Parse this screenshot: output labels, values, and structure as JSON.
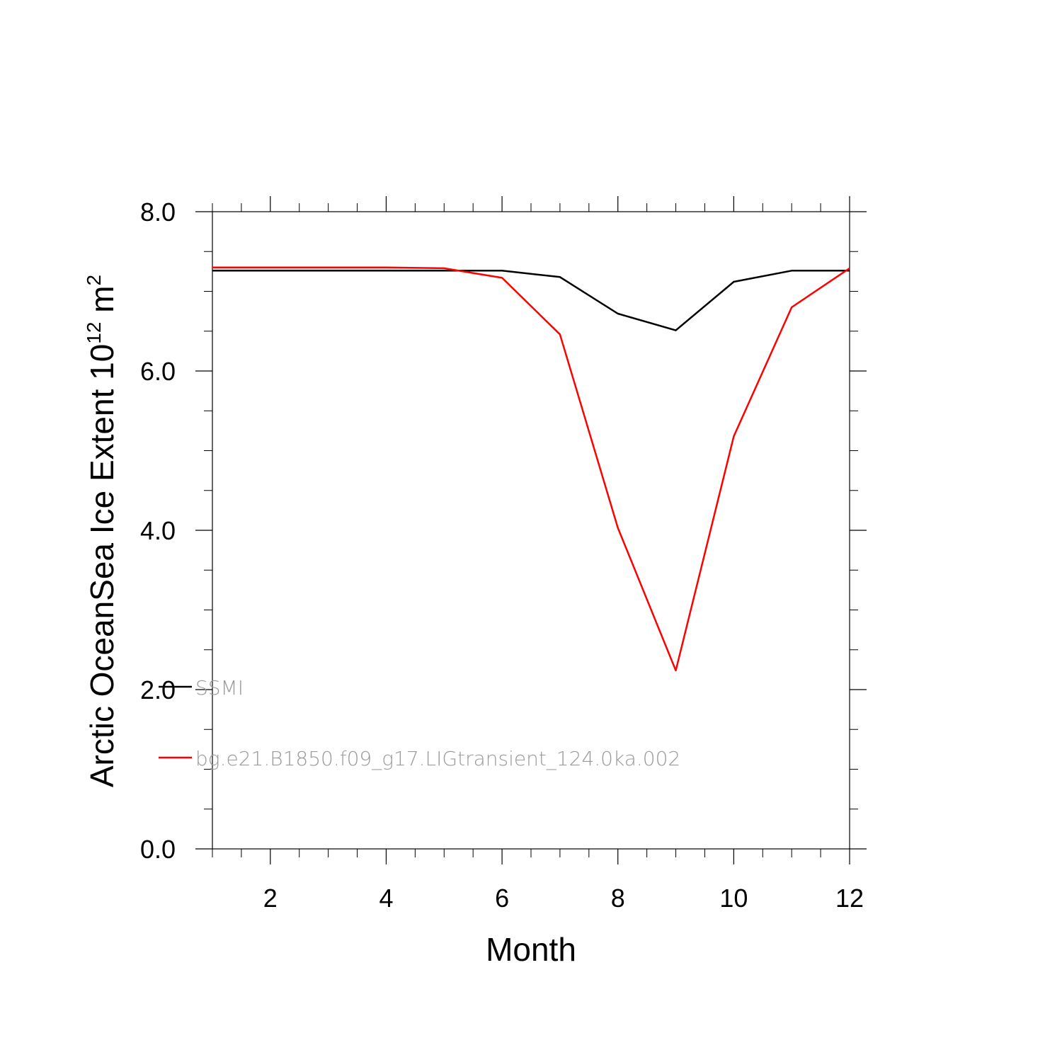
{
  "chart_data": {
    "type": "line",
    "title": "",
    "xlabel": "Month",
    "ylabel": {
      "main": "Arctic OceanSea Ice Extent 10",
      "sup1": "12",
      "unit": " m",
      "sup2": "2"
    },
    "xlim": [
      1,
      12
    ],
    "ylim": [
      0,
      8
    ],
    "x_ticks": [
      2,
      4,
      6,
      8,
      10,
      12
    ],
    "x_tick_labels": [
      "2",
      "4",
      "6",
      "8",
      "10",
      "12"
    ],
    "y_ticks": [
      0,
      2,
      4,
      6,
      8
    ],
    "y_tick_labels": [
      "0.0",
      "2.0",
      "4.0",
      "6.0",
      "8.0"
    ],
    "x": [
      1,
      2,
      3,
      4,
      5,
      6,
      7,
      8,
      9,
      10,
      11,
      12
    ],
    "series": [
      {
        "name": "SSMI",
        "color": "#000000",
        "values": [
          7.26,
          7.26,
          7.26,
          7.26,
          7.26,
          7.26,
          7.18,
          6.72,
          6.51,
          7.12,
          7.26,
          7.26
        ]
      },
      {
        "name": "bg.e21.B1850.f09_g17.LIGtransient_124.0ka.002",
        "color": "#ff0000",
        "values": [
          7.3,
          7.3,
          7.3,
          7.3,
          7.29,
          7.17,
          6.46,
          4.03,
          2.24,
          5.18,
          6.8,
          7.29
        ]
      }
    ],
    "legend_position": "lower-left",
    "grid": false
  }
}
